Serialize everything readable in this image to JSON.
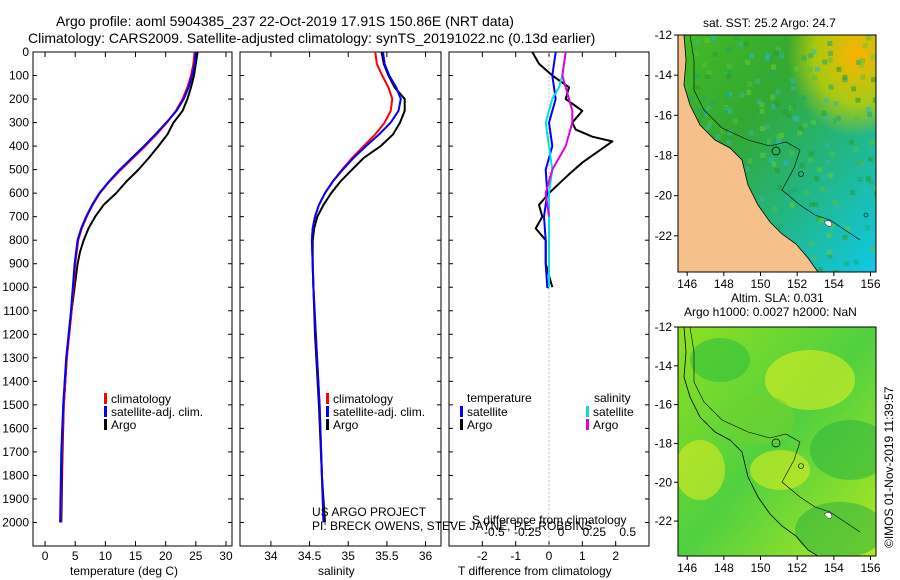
{
  "title": {
    "line1": "Argo profile: aoml 5904385_237 22-Oct-2019 17.91S 150.86E (NRT data)",
    "line2": "Climatology: CARS2009. Satellite-adjusted climatology: synTS_20191022.nc (0.13d earlier)"
  },
  "credit": {
    "line1": "US ARGO PROJECT",
    "line2": "PI: BRECK OWENS, STEVE JAYNE, P.E. ROBBINS"
  },
  "watermark": "©IMOS 01-Nov-2019 11:39:57",
  "colors": {
    "argo": "#000000",
    "climatology": "#ff0000",
    "satellite": "#0000ff",
    "sat_salinity": "#00e0e0",
    "argo_salinity_diff": "#e000e0",
    "land": "#f5c08a",
    "coast": "#000000"
  },
  "chart_data": [
    {
      "type": "line",
      "title": "",
      "xlabel": "temperature (deg C)",
      "ylabel": "",
      "xlim": [
        -2,
        31
      ],
      "ylim": [
        2100,
        0
      ],
      "xticks": [
        0,
        5,
        10,
        15,
        20,
        25,
        30
      ],
      "yticks": [
        0,
        100,
        200,
        300,
        400,
        500,
        600,
        700,
        800,
        900,
        1000,
        1100,
        1200,
        1300,
        1400,
        1500,
        1600,
        1700,
        1800,
        1900,
        2000
      ],
      "legend": [
        "climatology",
        "satellite-adj. clim.",
        "Argo"
      ],
      "series": [
        {
          "name": "Argo",
          "color": "#000000",
          "x": [
            25.3,
            25.0,
            24.7,
            24.2,
            23.6,
            22.8,
            21.3,
            20.3,
            18.8,
            17.2,
            15.5,
            13.5,
            11.8,
            9.7,
            8.3,
            7.2,
            6.4,
            5.8,
            5.4,
            4.9,
            4.4,
            3.6,
            3.1,
            2.9,
            2.7
          ],
          "y": [
            0,
            50,
            100,
            150,
            200,
            250,
            300,
            350,
            400,
            450,
            500,
            550,
            600,
            650,
            700,
            750,
            800,
            850,
            900,
            1000,
            1100,
            1300,
            1500,
            1700,
            2000
          ]
        },
        {
          "name": "climatology",
          "color": "#ff0000",
          "x": [
            24.8,
            24.6,
            24.2,
            23.6,
            22.8,
            21.7,
            20.2,
            18.5,
            16.6,
            14.6,
            12.6,
            10.7,
            9.1,
            7.9,
            6.9,
            6.1,
            5.5,
            5.0,
            4.4,
            3.6,
            3.1,
            2.8,
            2.6
          ],
          "y": [
            0,
            50,
            100,
            150,
            200,
            250,
            300,
            350,
            400,
            450,
            500,
            550,
            600,
            650,
            700,
            750,
            800,
            900,
            1100,
            1300,
            1500,
            1700,
            2000
          ]
        },
        {
          "name": "satellite-adj. clim.",
          "color": "#0000ff",
          "x": [
            25.0,
            24.8,
            24.4,
            23.8,
            23.0,
            21.8,
            20.1,
            18.3,
            16.4,
            14.4,
            12.4,
            10.6,
            9.0,
            7.8,
            6.8,
            6.0,
            5.4,
            4.9,
            4.3,
            3.5,
            3.0,
            2.7,
            2.5
          ],
          "y": [
            0,
            50,
            100,
            150,
            200,
            250,
            300,
            350,
            400,
            450,
            500,
            550,
            600,
            650,
            700,
            750,
            800,
            900,
            1100,
            1300,
            1500,
            1700,
            2000
          ]
        }
      ]
    },
    {
      "type": "line",
      "title": "",
      "xlabel": "salinity",
      "ylabel": "",
      "xlim": [
        33.6,
        36.2
      ],
      "ylim": [
        2100,
        0
      ],
      "xticks": [
        34,
        34.5,
        35,
        35.5,
        36
      ],
      "legend": [
        "climatology",
        "satellite-adj. clim.",
        "Argo"
      ],
      "series": [
        {
          "name": "Argo",
          "color": "#000000",
          "x": [
            35.43,
            35.46,
            35.52,
            35.6,
            35.73,
            35.73,
            35.67,
            35.58,
            35.42,
            35.2,
            35.05,
            34.9,
            34.78,
            34.68,
            34.6,
            34.56,
            34.54,
            34.54,
            34.55,
            34.57,
            34.62,
            34.66,
            34.7
          ],
          "y": [
            0,
            50,
            100,
            150,
            200,
            250,
            300,
            350,
            400,
            450,
            500,
            550,
            600,
            650,
            700,
            750,
            800,
            900,
            1000,
            1200,
            1500,
            1800,
            2000
          ]
        },
        {
          "name": "climatology",
          "color": "#ff0000",
          "x": [
            35.35,
            35.37,
            35.44,
            35.52,
            35.57,
            35.55,
            35.47,
            35.35,
            35.2,
            35.05,
            34.92,
            34.8,
            34.7,
            34.62,
            34.57,
            34.54,
            34.53,
            34.55,
            34.58,
            34.63,
            34.68
          ],
          "y": [
            0,
            50,
            100,
            150,
            200,
            250,
            300,
            350,
            400,
            450,
            500,
            550,
            600,
            650,
            700,
            750,
            800,
            1000,
            1200,
            1500,
            2000
          ]
        },
        {
          "name": "satellite-adj. clim.",
          "color": "#0000ff",
          "x": [
            35.45,
            35.47,
            35.53,
            35.62,
            35.68,
            35.65,
            35.55,
            35.4,
            35.23,
            35.07,
            34.93,
            34.8,
            34.7,
            34.62,
            34.57,
            34.54,
            34.53,
            34.55,
            34.58,
            34.63,
            34.68
          ],
          "y": [
            0,
            50,
            100,
            150,
            200,
            250,
            300,
            350,
            400,
            450,
            500,
            550,
            600,
            650,
            700,
            750,
            800,
            1000,
            1200,
            1500,
            2000
          ]
        }
      ]
    },
    {
      "type": "line",
      "title": "S difference from climatology",
      "xlabel": "T difference from climatology",
      "ylabel": "",
      "xlim": [
        -3,
        3
      ],
      "ylim": [
        2100,
        0
      ],
      "xticks": [
        -2,
        -1,
        0,
        1,
        2
      ],
      "secondary_xticks": [
        "-0.5",
        "-0.25",
        "0",
        "0.25",
        "0.5"
      ],
      "legend": [
        "temperature",
        "satellite",
        "Argo",
        "salinity",
        "satellite",
        "Argo"
      ],
      "series": [
        {
          "name": "Argo temperature",
          "color": "#000000",
          "x": [
            -0.5,
            -0.3,
            0.1,
            0.6,
            0.5,
            1.0,
            0.7,
            0.8,
            1.3,
            1.9,
            1.5,
            1.0,
            0.6,
            0.3,
            0.0,
            -0.3,
            -0.2,
            -0.4,
            -0.1,
            -0.1,
            0.1
          ],
          "y": [
            0,
            50,
            100,
            150,
            200,
            250,
            300,
            330,
            360,
            380,
            420,
            470,
            520,
            560,
            600,
            650,
            700,
            750,
            800,
            900,
            1000
          ]
        },
        {
          "name": "satellite temperature",
          "color": "#0000ff",
          "x": [
            0.2,
            0.1,
            0.2,
            0.0,
            0.1,
            -0.1,
            -0.05,
            -0.15,
            -0.1,
            -0.1,
            -0.05,
            0.0
          ],
          "y": [
            0,
            100,
            200,
            300,
            400,
            500,
            600,
            700,
            800,
            900,
            1000,
            1000
          ]
        },
        {
          "name": "satellite salinity",
          "color": "#00e0e0",
          "x": [
            0.5,
            0.4,
            0.3,
            0.1,
            -0.1,
            0.0,
            0.1,
            0.0,
            0.0,
            0.0,
            0.0
          ],
          "y": [
            0,
            100,
            150,
            200,
            300,
            400,
            500,
            600,
            700,
            800,
            1000
          ]
        },
        {
          "name": "Argo salinity",
          "color": "#e000e0",
          "x": [
            0.5,
            0.4,
            0.5,
            0.6,
            0.7,
            0.7,
            0.5,
            0.3,
            0.1,
            -0.1,
            0.0
          ],
          "y": [
            0,
            100,
            150,
            200,
            250,
            300,
            400,
            450,
            500,
            600,
            700
          ]
        }
      ]
    },
    {
      "type": "heatmap",
      "title": "sat. SST: 25.2 Argo: 24.7",
      "xlabel": "",
      "ylabel": "",
      "xlim": [
        145.5,
        156.3
      ],
      "ylim": [
        -23.8,
        -12
      ],
      "xticks": [
        146,
        148,
        150,
        152,
        154,
        156
      ],
      "yticks": [
        -12,
        -14,
        -16,
        -18,
        -20,
        -22
      ]
    },
    {
      "type": "heatmap",
      "title": "Altim. SLA: 0.031",
      "subtitle": "Argo h1000: 0.0027 h2000: NaN",
      "xlabel": "",
      "ylabel": "",
      "xlim": [
        145.5,
        156.3
      ],
      "ylim": [
        -23.8,
        -12
      ],
      "xticks": [
        146,
        148,
        150,
        152,
        154,
        156
      ],
      "yticks": [
        -12,
        -14,
        -16,
        -18,
        -20,
        -22
      ]
    }
  ]
}
